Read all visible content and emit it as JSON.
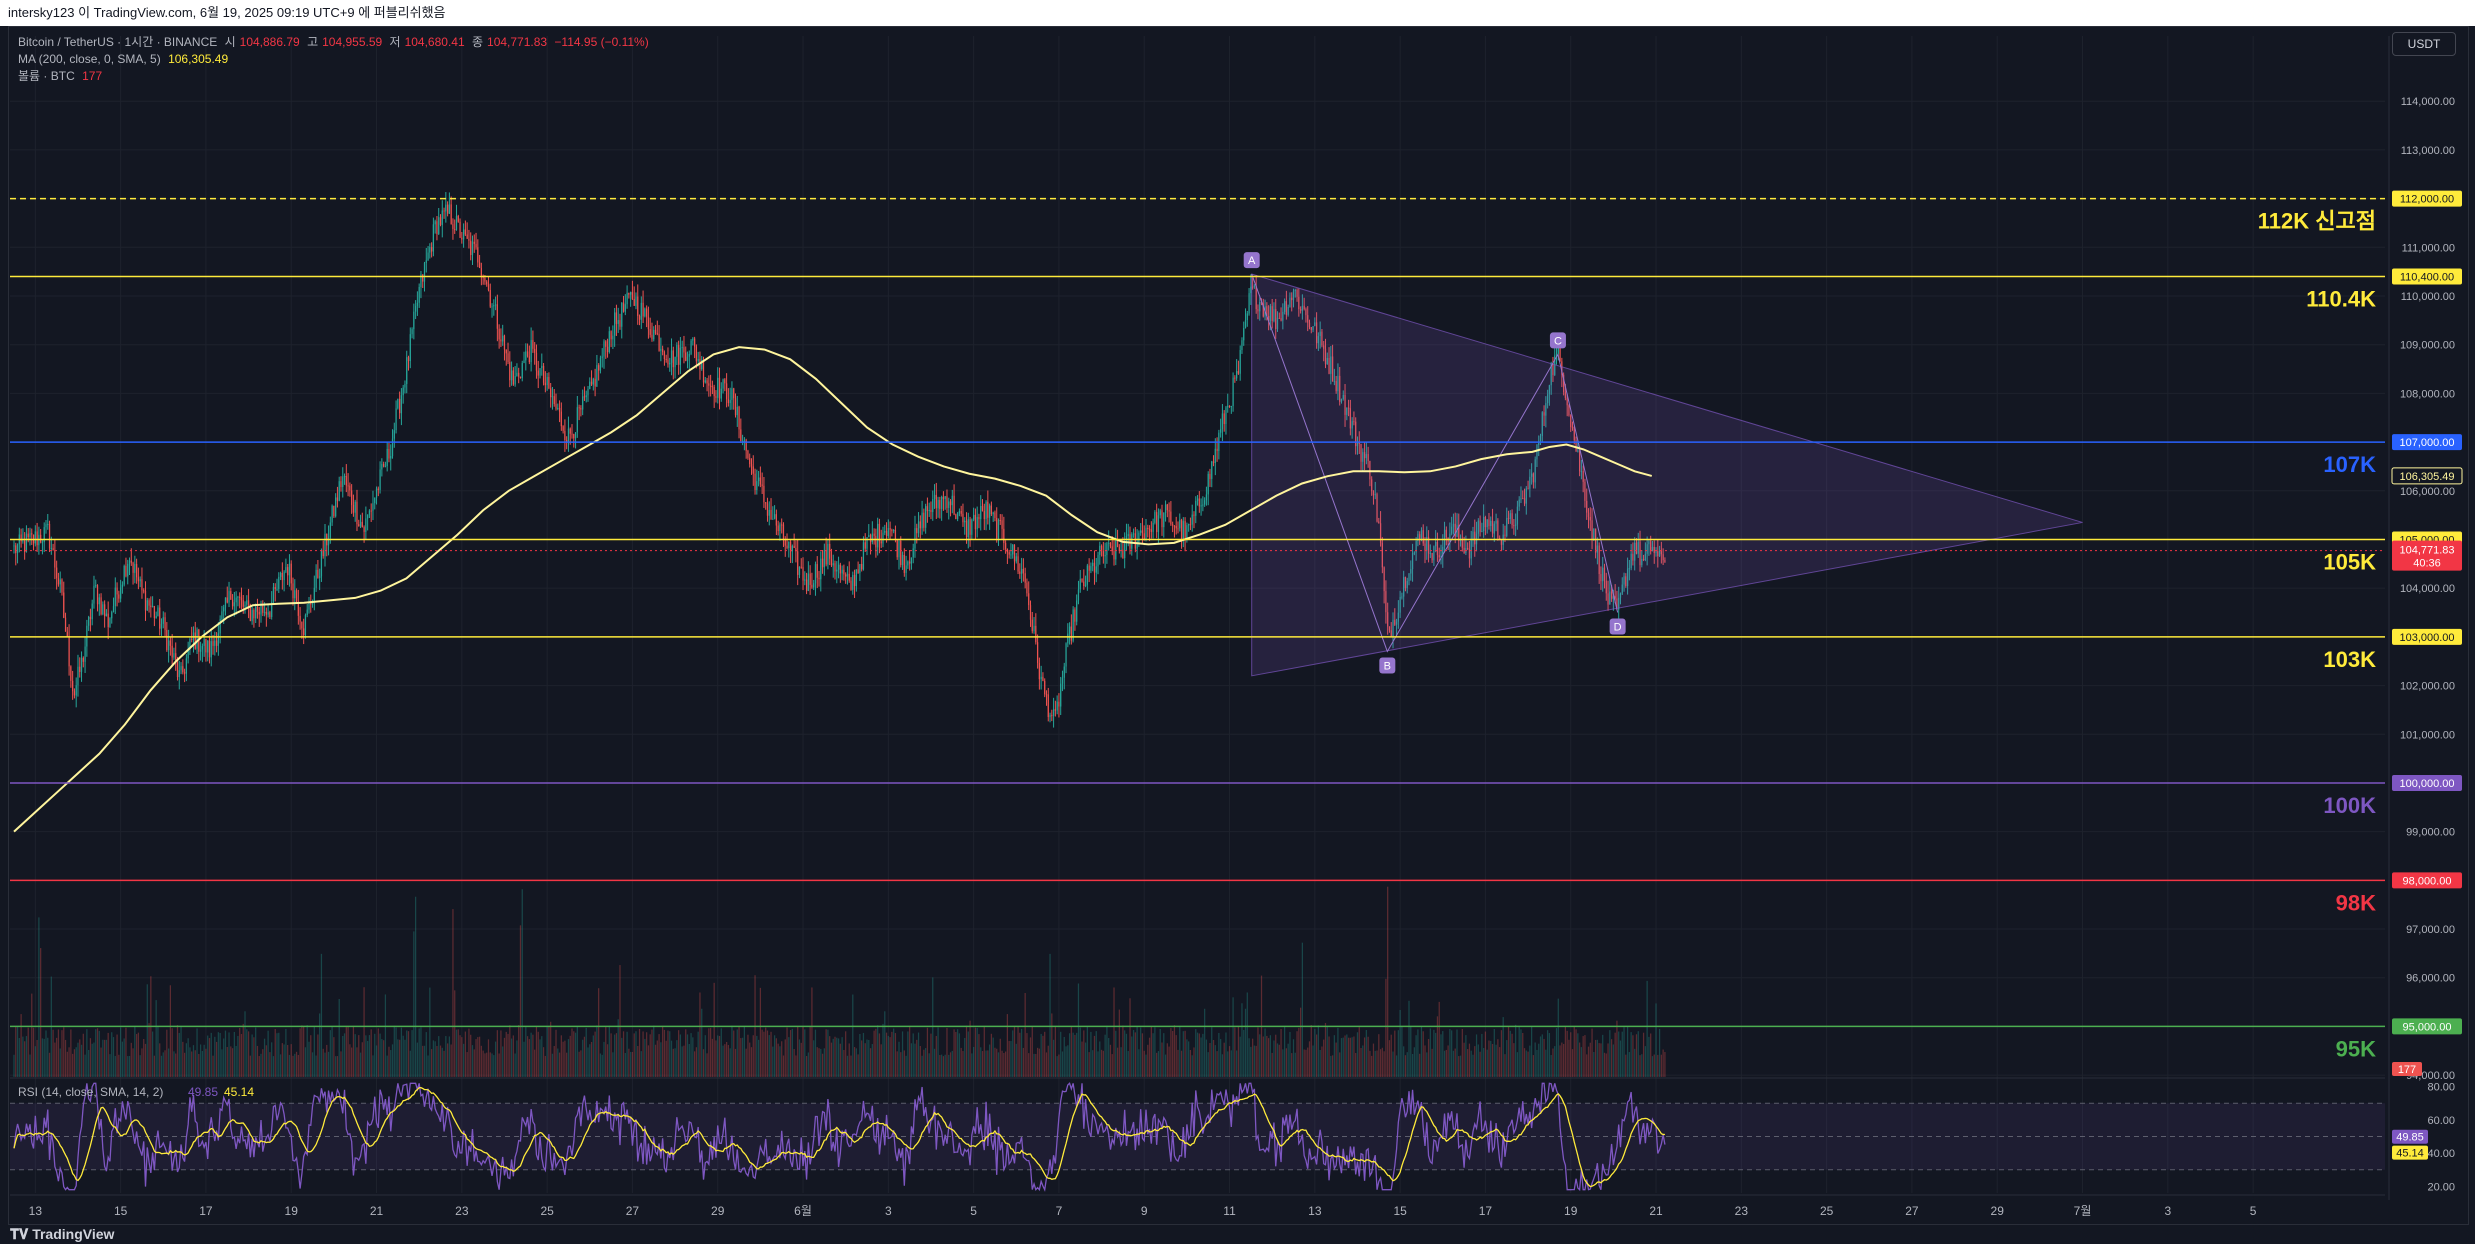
{
  "header": {
    "attribution": "intersky123 이 TradingView.com, 6월 19, 2025 09:19 UTC+9 에 퍼블리쉬했음"
  },
  "legend": {
    "symbol": "Bitcoin / TetherUS · 1시간 · BINANCE",
    "open_label": "시",
    "open": "104,886.79",
    "high_label": "고",
    "high": "104,955.59",
    "low_label": "저",
    "low": "104,680.41",
    "close_label": "종",
    "close": "104,771.83",
    "change": "−114.95 (−0.11%)",
    "ma_label": "MA (200, close, 0, SMA, 5)",
    "ma_value": "106,305.49",
    "volume_label": "볼륨 · BTC",
    "volume_value": "177",
    "rsi_label": "RSI (14, close, SMA, 14, 2)",
    "rsi_value": "49.85",
    "rsi_ma_value": "45.14"
  },
  "currency_button": "USDT",
  "logo_text": "TradingView",
  "colors": {
    "background": "#131722",
    "up": "#26a69a",
    "down": "#ef5350",
    "ma": "#fff59d",
    "triangle_fill": "#7e57c2",
    "yellow": "#ffeb3b",
    "blue": "#2962ff",
    "purple": "#7e57c2",
    "red": "#f23645",
    "green": "#4caf50"
  },
  "chart_data": {
    "type": "candlestick",
    "price_axis": {
      "range": [
        93900,
        114600
      ],
      "ticks": [
        "114,000.00",
        "113,000.00",
        "112,000.00",
        "111,000.00",
        "110,000.00",
        "109,000.00",
        "108,000.00",
        "107,000.00",
        "106,000.00",
        "105,000.00",
        "104,000.00",
        "103,000.00",
        "102,000.00",
        "101,000.00",
        "100,000.00",
        "99,000.00",
        "98,000.00",
        "97,000.00",
        "96,000.00",
        "95,000.00",
        "94,000.00"
      ]
    },
    "time_axis": {
      "labels": [
        "13",
        "15",
        "17",
        "19",
        "21",
        "23",
        "25",
        "27",
        "29",
        "6월",
        "3",
        "5",
        "7",
        "9",
        "11",
        "13",
        "15",
        "17",
        "19",
        "21",
        "23",
        "25",
        "27",
        "29",
        "7월",
        "3",
        "5"
      ]
    },
    "horizontal_levels": [
      {
        "price": 112000,
        "tag": "112,000.00",
        "label": "112K 신고점",
        "color": "#ffeb3b",
        "style": "dashed"
      },
      {
        "price": 110400,
        "tag": "110,400.00",
        "label": "110.4K",
        "color": "#ffeb3b",
        "style": "solid"
      },
      {
        "price": 107000,
        "tag": "107,000.00",
        "label": "107K",
        "color": "#2962ff",
        "style": "solid"
      },
      {
        "price": 105000,
        "tag": "105,000.00",
        "label": "105K",
        "color": "#ffeb3b",
        "style": "solid"
      },
      {
        "price": 103000,
        "tag": "103,000.00",
        "label": "103K",
        "color": "#ffeb3b",
        "style": "solid"
      },
      {
        "price": 100000,
        "tag": "100,000.00",
        "label": "100K",
        "color": "#7e57c2",
        "style": "solid"
      },
      {
        "price": 98000,
        "tag": "98,000.00",
        "label": "98K",
        "color": "#f23645",
        "style": "solid"
      },
      {
        "price": 95000,
        "tag": "95,000.00",
        "label": "95K",
        "color": "#4caf50",
        "style": "solid"
      }
    ],
    "price_tags": [
      {
        "text": "106,305.49",
        "price": 106305.49,
        "kind": "ma"
      },
      {
        "text": "104,771.83",
        "sub": "40:36",
        "price": 104771.83,
        "kind": "last"
      }
    ],
    "ohlc_path": [
      [
        0,
        104800
      ],
      [
        0.8,
        105150
      ],
      [
        1.1,
        103900
      ],
      [
        1.4,
        101800
      ],
      [
        1.6,
        102500
      ],
      [
        1.9,
        104000
      ],
      [
        2.2,
        103300
      ],
      [
        2.7,
        104700
      ],
      [
        3.0,
        103900
      ],
      [
        3.5,
        103200
      ],
      [
        3.9,
        102100
      ],
      [
        4.2,
        103000
      ],
      [
        4.6,
        102700
      ],
      [
        5.1,
        103900
      ],
      [
        5.5,
        103500
      ],
      [
        6.0,
        103600
      ],
      [
        6.4,
        104500
      ],
      [
        6.8,
        103200
      ],
      [
        7.3,
        104900
      ],
      [
        7.7,
        106300
      ],
      [
        8.2,
        105200
      ],
      [
        8.8,
        106800
      ],
      [
        9.2,
        108500
      ],
      [
        9.5,
        110100
      ],
      [
        9.9,
        111500
      ],
      [
        10.2,
        111700
      ],
      [
        10.6,
        111100
      ],
      [
        10.9,
        110800
      ],
      [
        11.3,
        109600
      ],
      [
        11.7,
        108200
      ],
      [
        12.1,
        108900
      ],
      [
        12.6,
        107900
      ],
      [
        13.0,
        107100
      ],
      [
        13.5,
        108000
      ],
      [
        14.0,
        109300
      ],
      [
        14.5,
        110000
      ],
      [
        14.9,
        109400
      ],
      [
        15.4,
        108700
      ],
      [
        15.9,
        109000
      ],
      [
        16.3,
        108200
      ],
      [
        16.8,
        108000
      ],
      [
        17.3,
        106400
      ],
      [
        17.7,
        105600
      ],
      [
        18.1,
        104900
      ],
      [
        18.6,
        104100
      ],
      [
        19.1,
        104700
      ],
      [
        19.6,
        104000
      ],
      [
        20.0,
        104900
      ],
      [
        20.5,
        105300
      ],
      [
        20.9,
        104500
      ],
      [
        21.4,
        105600
      ],
      [
        21.9,
        105900
      ],
      [
        22.3,
        105200
      ],
      [
        22.8,
        105600
      ],
      [
        23.3,
        104900
      ],
      [
        23.7,
        104200
      ],
      [
        24.1,
        102000
      ],
      [
        24.4,
        101200
      ],
      [
        24.7,
        102800
      ],
      [
        25.0,
        104000
      ],
      [
        25.5,
        104700
      ],
      [
        26.0,
        104800
      ],
      [
        26.5,
        105200
      ],
      [
        27.0,
        105500
      ],
      [
        27.5,
        105100
      ],
      [
        28.0,
        106200
      ],
      [
        28.4,
        107600
      ],
      [
        28.7,
        108400
      ],
      [
        29.0,
        110100
      ],
      [
        29.3,
        109800
      ],
      [
        29.6,
        109500
      ],
      [
        30.0,
        110100
      ],
      [
        30.3,
        109600
      ],
      [
        30.6,
        109100
      ],
      [
        30.9,
        108500
      ],
      [
        31.2,
        107800
      ],
      [
        31.5,
        107000
      ],
      [
        31.8,
        106400
      ],
      [
        32.0,
        105300
      ],
      [
        32.2,
        103000
      ],
      [
        32.4,
        103500
      ],
      [
        32.7,
        104500
      ],
      [
        33.0,
        105100
      ],
      [
        33.3,
        104700
      ],
      [
        33.7,
        105200
      ],
      [
        34.1,
        104800
      ],
      [
        34.5,
        105400
      ],
      [
        34.9,
        105100
      ],
      [
        35.3,
        105600
      ],
      [
        35.6,
        106300
      ],
      [
        35.8,
        107200
      ],
      [
        36.0,
        108400
      ],
      [
        36.2,
        108800
      ],
      [
        36.4,
        108000
      ],
      [
        36.6,
        107000
      ],
      [
        36.8,
        106100
      ],
      [
        37.0,
        105200
      ],
      [
        37.2,
        104400
      ],
      [
        37.4,
        103700
      ],
      [
        37.6,
        103500
      ],
      [
        37.8,
        104300
      ],
      [
        38.0,
        104900
      ],
      [
        38.2,
        104500
      ],
      [
        38.4,
        104900
      ],
      [
        38.6,
        104500
      ],
      [
        38.75,
        104772
      ]
    ],
    "ma200": [
      [
        0,
        99000
      ],
      [
        0.5,
        99400
      ],
      [
        1.0,
        99800
      ],
      [
        1.5,
        100200
      ],
      [
        2.0,
        100600
      ],
      [
        2.6,
        101200
      ],
      [
        3.2,
        101900
      ],
      [
        3.8,
        102500
      ],
      [
        4.4,
        103000
      ],
      [
        5.0,
        103400
      ],
      [
        5.6,
        103650
      ],
      [
        6.2,
        103680
      ],
      [
        6.8,
        103700
      ],
      [
        7.4,
        103750
      ],
      [
        8.0,
        103800
      ],
      [
        8.6,
        103950
      ],
      [
        9.2,
        104200
      ],
      [
        9.8,
        104650
      ],
      [
        10.4,
        105100
      ],
      [
        11.0,
        105600
      ],
      [
        11.6,
        106000
      ],
      [
        12.2,
        106300
      ],
      [
        12.8,
        106600
      ],
      [
        13.4,
        106900
      ],
      [
        14.0,
        107200
      ],
      [
        14.6,
        107550
      ],
      [
        15.2,
        108000
      ],
      [
        15.8,
        108450
      ],
      [
        16.4,
        108800
      ],
      [
        17.0,
        108950
      ],
      [
        17.6,
        108900
      ],
      [
        18.2,
        108700
      ],
      [
        18.8,
        108300
      ],
      [
        19.4,
        107800
      ],
      [
        20.0,
        107300
      ],
      [
        20.6,
        106950
      ],
      [
        21.2,
        106700
      ],
      [
        21.8,
        106500
      ],
      [
        22.4,
        106350
      ],
      [
        23.0,
        106250
      ],
      [
        23.6,
        106100
      ],
      [
        24.2,
        105900
      ],
      [
        24.8,
        105500
      ],
      [
        25.4,
        105150
      ],
      [
        26.0,
        104950
      ],
      [
        26.6,
        104900
      ],
      [
        27.2,
        104930
      ],
      [
        27.8,
        105100
      ],
      [
        28.4,
        105300
      ],
      [
        29.0,
        105600
      ],
      [
        29.6,
        105900
      ],
      [
        30.2,
        106150
      ],
      [
        30.8,
        106300
      ],
      [
        31.4,
        106400
      ],
      [
        32.0,
        106400
      ],
      [
        32.6,
        106380
      ],
      [
        33.2,
        106400
      ],
      [
        33.8,
        106500
      ],
      [
        34.4,
        106650
      ],
      [
        35.0,
        106750
      ],
      [
        35.6,
        106800
      ],
      [
        36.0,
        106900
      ],
      [
        36.4,
        106950
      ],
      [
        36.8,
        106850
      ],
      [
        37.2,
        106700
      ],
      [
        37.6,
        106550
      ],
      [
        38.0,
        106400
      ],
      [
        38.4,
        106305
      ]
    ],
    "triangle": {
      "vertices": [
        [
          29.02,
          110450
        ],
        [
          29.02,
          102200
        ],
        [
          48.5,
          105350
        ]
      ],
      "abcd": [
        {
          "label": "A",
          "day": 29.02,
          "price": 110450
        },
        {
          "label": "B",
          "day": 32.2,
          "price": 102700
        },
        {
          "label": "C",
          "day": 36.2,
          "price": 108800
        },
        {
          "label": "D",
          "day": 37.6,
          "price": 103500
        }
      ]
    },
    "rsi": {
      "range": [
        16,
        84
      ],
      "ticks": [
        "80.00",
        "60.00",
        "40.00",
        "20.00"
      ],
      "band": [
        30,
        70
      ],
      "midline": 50,
      "last_rsi": "49.85",
      "last_ma": "45.14"
    },
    "volume": {
      "last_tag": "177",
      "spikes": [
        [
          0.6,
          0.85
        ],
        [
          3.2,
          0.45
        ],
        [
          5.4,
          0.35
        ],
        [
          7.2,
          0.55
        ],
        [
          9.4,
          0.96
        ],
        [
          10.3,
          0.75
        ],
        [
          11.9,
          1.0
        ],
        [
          14.2,
          0.5
        ],
        [
          16.1,
          0.45
        ],
        [
          18.7,
          0.4
        ],
        [
          20.4,
          0.35
        ],
        [
          22.4,
          0.3
        ],
        [
          24.3,
          0.55
        ],
        [
          25.8,
          0.4
        ],
        [
          28.9,
          0.45
        ],
        [
          30.2,
          0.6
        ],
        [
          32.2,
          0.85
        ],
        [
          33.4,
          0.4
        ],
        [
          36.2,
          0.35
        ],
        [
          37.6,
          0.3
        ],
        [
          38.3,
          0.25
        ]
      ]
    }
  }
}
